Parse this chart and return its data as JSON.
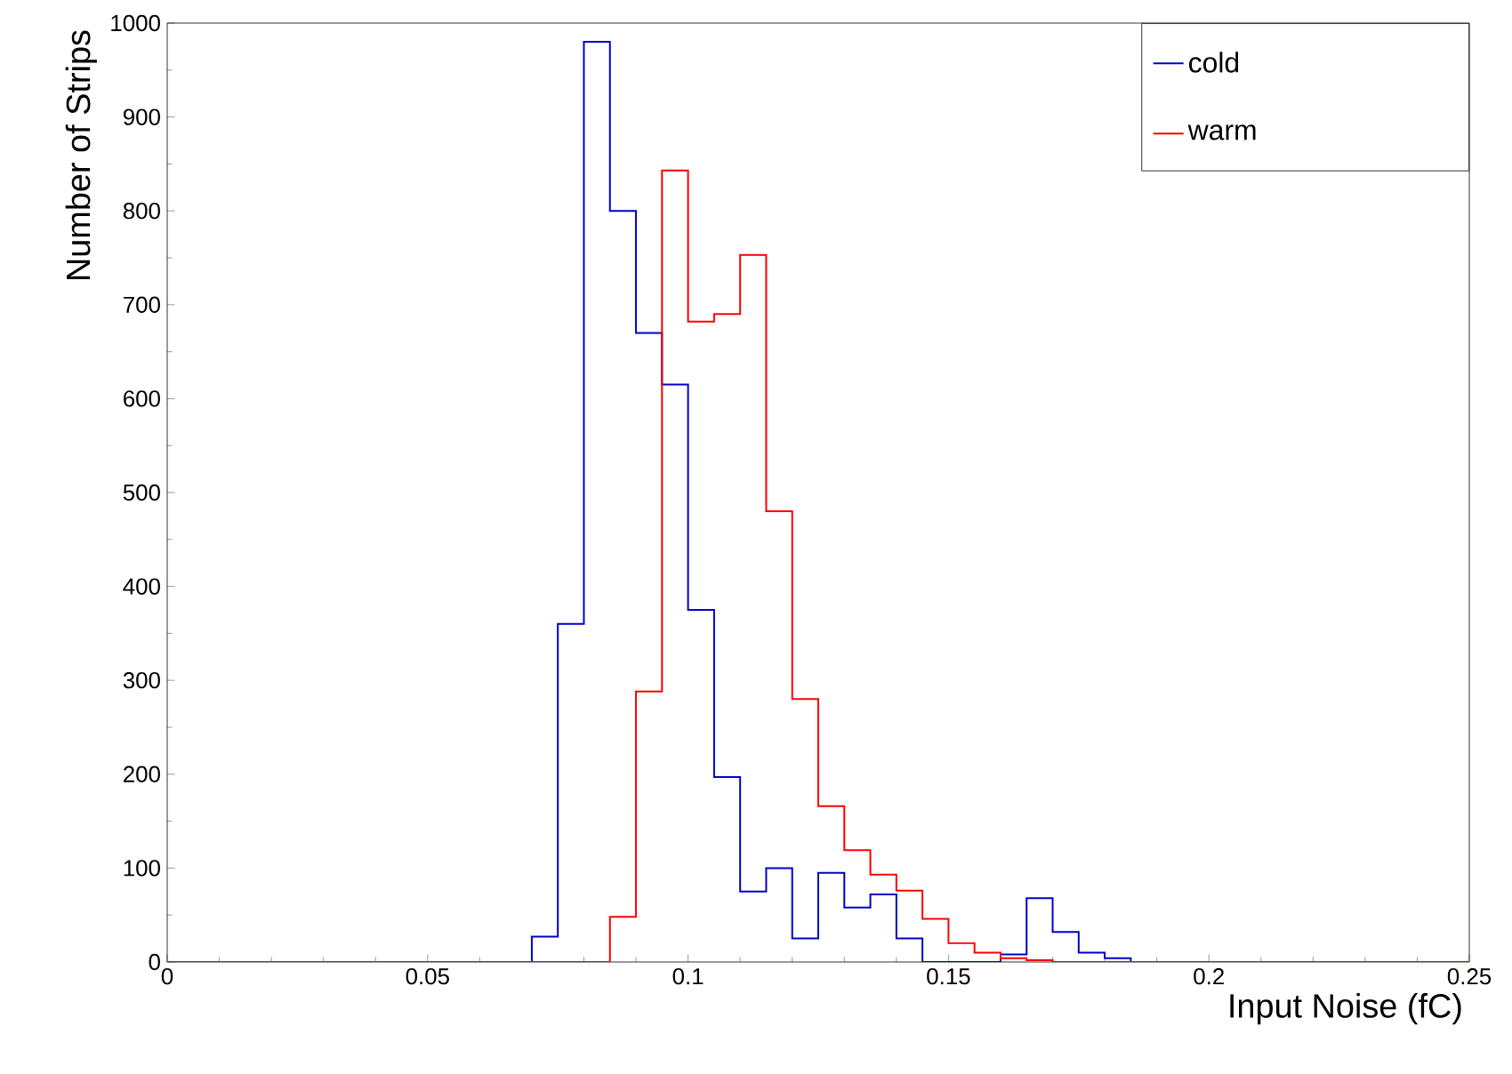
{
  "chart_data": {
    "type": "histogram",
    "xlabel": "Input Noise (fC)",
    "ylabel": "Number of Strips",
    "bins": [
      0,
      0.005,
      0.01,
      0.015,
      0.02,
      0.025,
      0.03,
      0.035,
      0.04,
      0.045,
      0.05,
      0.055,
      0.06,
      0.065,
      0.07,
      0.075,
      0.08,
      0.085,
      0.09,
      0.095,
      0.1,
      0.105,
      0.11,
      0.115,
      0.12,
      0.125,
      0.13,
      0.135,
      0.14,
      0.145,
      0.15,
      0.155,
      0.16,
      0.165,
      0.17,
      0.175,
      0.18,
      0.185,
      0.19,
      0.195,
      0.2,
      0.205,
      0.21,
      0.215,
      0.22,
      0.225,
      0.23,
      0.235,
      0.24,
      0.245,
      0.25
    ],
    "series": [
      {
        "name": "cold",
        "color": "#0000cc",
        "values": [
          0,
          0,
          0,
          0,
          0,
          0,
          0,
          0,
          0,
          0,
          0,
          0,
          0,
          0,
          27,
          360,
          980,
          800,
          670,
          615,
          375,
          197,
          75,
          100,
          25,
          95,
          58,
          72,
          25,
          0,
          0,
          0,
          8,
          68,
          32,
          10,
          4,
          0,
          0,
          0,
          0,
          0,
          0,
          0,
          0,
          0,
          0,
          0,
          0,
          0
        ]
      },
      {
        "name": "warm",
        "color": "#ff0000",
        "values": [
          0,
          0,
          0,
          0,
          0,
          0,
          0,
          0,
          0,
          0,
          0,
          0,
          0,
          0,
          0,
          0,
          0,
          48,
          288,
          843,
          682,
          690,
          753,
          480,
          280,
          166,
          119,
          93,
          76,
          46,
          20,
          10,
          4,
          2,
          0,
          0,
          0,
          0,
          0,
          0,
          0,
          0,
          0,
          0,
          0,
          0,
          0,
          0,
          0,
          0
        ]
      }
    ],
    "xlim": [
      0,
      0.25
    ],
    "ylim": [
      0,
      1000
    ],
    "xticks": [
      0,
      0.05,
      0.1,
      0.15,
      0.2,
      0.25
    ],
    "yticks": [
      0,
      100,
      200,
      300,
      400,
      500,
      600,
      700,
      800,
      900,
      1000
    ],
    "legend": "top right"
  }
}
